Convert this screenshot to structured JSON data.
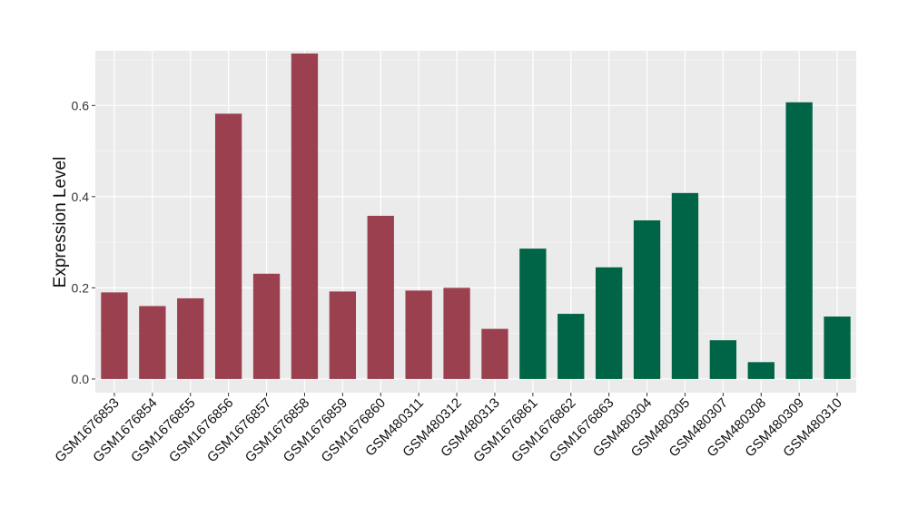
{
  "chart_data": {
    "type": "bar",
    "title": "",
    "xlabel": "",
    "ylabel": "Expression Level",
    "ylim": [
      -0.03,
      0.72
    ],
    "yticks": [
      0.0,
      0.2,
      0.4,
      0.6
    ],
    "ytick_labels": [
      "0.0",
      "0.2",
      "0.4",
      "0.6"
    ],
    "grid": true,
    "legend": "none",
    "colors": {
      "panel": "#ebebeb",
      "grid_major": "#ffffff",
      "group_1": "#9b404f",
      "group_2": "#006546",
      "tick": "#333333"
    },
    "categories": [
      "GSM1676853",
      "GSM1676854",
      "GSM1676855",
      "GSM1676856",
      "GSM1676857",
      "GSM1676858",
      "GSM1676859",
      "GSM1676860",
      "GSM480311",
      "GSM480312",
      "GSM480313",
      "GSM1676861",
      "GSM1676862",
      "GSM1676863",
      "GSM480304",
      "GSM480305",
      "GSM480307",
      "GSM480308",
      "GSM480309",
      "GSM480310"
    ],
    "values": [
      0.19,
      0.16,
      0.177,
      0.582,
      0.231,
      0.714,
      0.192,
      0.358,
      0.194,
      0.2,
      0.11,
      0.286,
      0.143,
      0.245,
      0.348,
      0.408,
      0.085,
      0.037,
      0.607,
      0.137
    ],
    "groups": [
      1,
      1,
      1,
      1,
      1,
      1,
      1,
      1,
      1,
      1,
      1,
      2,
      2,
      2,
      2,
      2,
      2,
      2,
      2,
      2
    ]
  }
}
